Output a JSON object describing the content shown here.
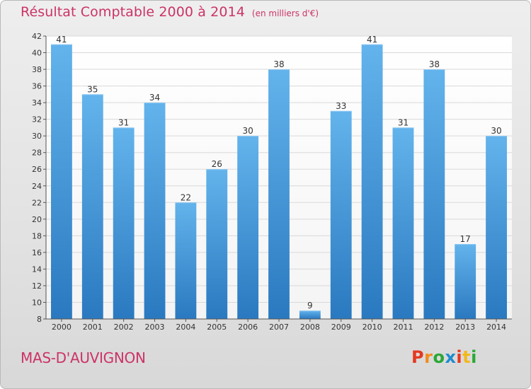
{
  "title": "Résultat Comptable 2000 à 2014",
  "subtitle": "(en milliers d'€)",
  "commune": "MAS-D'AUVIGNON",
  "logo": {
    "letters": [
      "P",
      "r",
      "o",
      "x",
      "i",
      "t",
      "i"
    ],
    "colors": [
      "#e5381f",
      "#f28c1c",
      "#2aa836",
      "#1f8ccf",
      "#e5381f",
      "#f2b81c",
      "#2aa836"
    ]
  },
  "colors": {
    "title": "#cc3366",
    "bar_top": "#63b3ec",
    "bar_bottom": "#2a79c0",
    "axis": "#555555"
  },
  "chart_data": {
    "type": "bar",
    "categories": [
      "2000",
      "2001",
      "2002",
      "2003",
      "2004",
      "2005",
      "2006",
      "2007",
      "2008",
      "2009",
      "2010",
      "2011",
      "2012",
      "2013",
      "2014"
    ],
    "values": [
      41,
      35,
      31,
      34,
      22,
      26,
      30,
      38,
      9,
      33,
      41,
      31,
      38,
      17,
      30
    ],
    "ylim": [
      8,
      42
    ],
    "yticks": [
      8,
      10,
      12,
      14,
      16,
      18,
      20,
      22,
      24,
      26,
      28,
      30,
      32,
      34,
      36,
      38,
      40,
      42
    ],
    "grid": true,
    "xlabel": "",
    "ylabel": ""
  }
}
